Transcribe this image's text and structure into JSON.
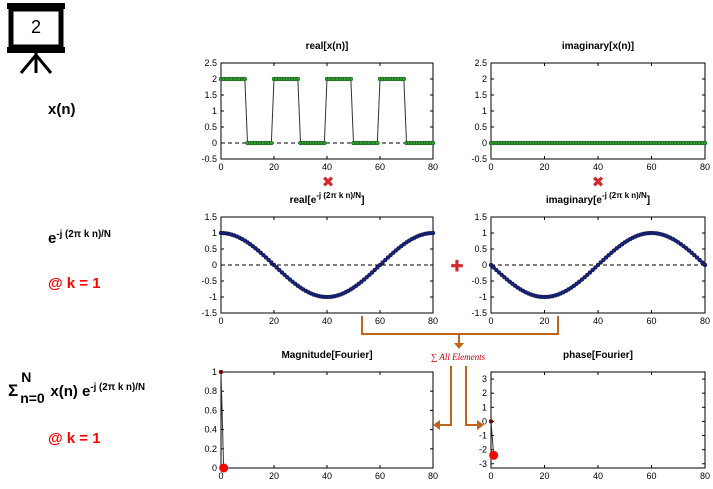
{
  "board_number": "2",
  "labels": {
    "xn": "x(n)",
    "exp_base": "e",
    "exp_sup": "-j (2π k n)/N",
    "at_k1": "@ k = 1",
    "sum_symbol": "Σ",
    "sum_upper": "N",
    "sum_lower": "n=0",
    "sum_term": "x(n) e",
    "sum_sup": "-j (2π k n)/N",
    "at_k1_b": "@ k = 1",
    "all_elements": "∑ All Elements"
  },
  "operators": {
    "multiply": "✖",
    "plus": "✚"
  },
  "colors": {
    "accent_red": "#ff0000",
    "arrow_orange": "#c0661a",
    "cross_red": "#d6282f",
    "green_marker": "#2e9e2e",
    "navy_marker": "#1a237e"
  },
  "chart_data": [
    {
      "id": "real_x",
      "type": "line",
      "title": "real[x(n)]",
      "title_parts": [],
      "x_ticks": [
        0,
        20,
        40,
        60,
        80
      ],
      "y_ticks": [
        2.5,
        2,
        1.5,
        1,
        0.5,
        0,
        -0.5
      ],
      "x_tick_labels": [
        "0",
        "20",
        "40",
        "60",
        "80"
      ],
      "y_tick_labels": [
        "2.5",
        "2",
        "1.5",
        "1",
        "0.5",
        "0",
        "-0.5"
      ],
      "xlim": [
        0,
        80
      ],
      "ylim": [
        -0.5,
        2.5
      ],
      "dashed_zero": true,
      "series": [
        {
          "x": [
            0,
            1,
            2,
            3,
            4,
            5,
            6,
            7,
            8,
            9,
            10,
            11,
            12,
            13,
            14,
            15,
            16,
            17,
            18,
            19,
            20,
            21,
            22,
            23,
            24,
            25,
            26,
            27,
            28,
            29,
            30,
            31,
            32,
            33,
            34,
            35,
            36,
            37,
            38,
            39,
            40,
            41,
            42,
            43,
            44,
            45,
            46,
            47,
            48,
            49,
            50,
            51,
            52,
            53,
            54,
            55,
            56,
            57,
            58,
            59,
            60,
            61,
            62,
            63,
            64,
            65,
            66,
            67,
            68,
            69,
            70,
            71,
            72,
            73,
            74,
            75,
            76,
            77,
            78,
            79,
            80
          ],
          "values": [
            2,
            2,
            2,
            2,
            2,
            2,
            2,
            2,
            2,
            2,
            0,
            0,
            0,
            0,
            0,
            0,
            0,
            0,
            0,
            0,
            2,
            2,
            2,
            2,
            2,
            2,
            2,
            2,
            2,
            2,
            0,
            0,
            0,
            0,
            0,
            0,
            0,
            0,
            0,
            0,
            2,
            2,
            2,
            2,
            2,
            2,
            2,
            2,
            2,
            2,
            0,
            0,
            0,
            0,
            0,
            0,
            0,
            0,
            0,
            0,
            2,
            2,
            2,
            2,
            2,
            2,
            2,
            2,
            2,
            2,
            0,
            0,
            0,
            0,
            0,
            0,
            0,
            0,
            0,
            0,
            0
          ],
          "marker_color": "#2e9e2e"
        }
      ]
    },
    {
      "id": "imag_x",
      "type": "line",
      "title": "imaginary[x(n)]",
      "title_parts": [],
      "x_ticks": [
        0,
        20,
        40,
        60,
        80
      ],
      "y_ticks": [
        2.5,
        2,
        1.5,
        1,
        0.5,
        0,
        -0.5
      ],
      "x_tick_labels": [
        "0",
        "20",
        "40",
        "60",
        "80"
      ],
      "y_tick_labels": [
        "2.5",
        "2",
        "1.5",
        "1",
        "0.5",
        "0",
        "-0.5"
      ],
      "xlim": [
        0,
        80
      ],
      "ylim": [
        -0.5,
        2.5
      ],
      "dashed_zero": true,
      "series": [
        {
          "x": [
            0,
            1,
            2,
            3,
            4,
            5,
            6,
            7,
            8,
            9,
            10,
            11,
            12,
            13,
            14,
            15,
            16,
            17,
            18,
            19,
            20,
            21,
            22,
            23,
            24,
            25,
            26,
            27,
            28,
            29,
            30,
            31,
            32,
            33,
            34,
            35,
            36,
            37,
            38,
            39,
            40,
            41,
            42,
            43,
            44,
            45,
            46,
            47,
            48,
            49,
            50,
            51,
            52,
            53,
            54,
            55,
            56,
            57,
            58,
            59,
            60,
            61,
            62,
            63,
            64,
            65,
            66,
            67,
            68,
            69,
            70,
            71,
            72,
            73,
            74,
            75,
            76,
            77,
            78,
            79,
            80
          ],
          "values": [
            0,
            0,
            0,
            0,
            0,
            0,
            0,
            0,
            0,
            0,
            0,
            0,
            0,
            0,
            0,
            0,
            0,
            0,
            0,
            0,
            0,
            0,
            0,
            0,
            0,
            0,
            0,
            0,
            0,
            0,
            0,
            0,
            0,
            0,
            0,
            0,
            0,
            0,
            0,
            0,
            0,
            0,
            0,
            0,
            0,
            0,
            0,
            0,
            0,
            0,
            0,
            0,
            0,
            0,
            0,
            0,
            0,
            0,
            0,
            0,
            0,
            0,
            0,
            0,
            0,
            0,
            0,
            0,
            0,
            0,
            0,
            0,
            0,
            0,
            0,
            0,
            0,
            0,
            0,
            0,
            0
          ],
          "marker_color": "#2e9e2e"
        }
      ]
    },
    {
      "id": "real_e",
      "type": "line",
      "title": "",
      "title_parts": [
        "real[e",
        "-j (2π k n)/N",
        "]"
      ],
      "x_ticks": [
        0,
        20,
        40,
        60,
        80
      ],
      "y_ticks": [
        1.5,
        1,
        0.5,
        0,
        -0.5,
        -1,
        -1.5
      ],
      "x_tick_labels": [
        "0",
        "20",
        "40",
        "60",
        "80"
      ],
      "y_tick_labels": [
        "1.5",
        "1",
        "0.5",
        "0",
        "-0.5",
        "-1",
        "-1.5"
      ],
      "xlim": [
        0,
        80
      ],
      "ylim": [
        -1.5,
        1.5
      ],
      "dashed_zero": true,
      "series": [
        {
          "function": "cos",
          "period": 80,
          "sign": 1,
          "n_points": 81,
          "marker_color": "#1a237e"
        }
      ]
    },
    {
      "id": "imag_e",
      "type": "line",
      "title": "",
      "title_parts": [
        "imaginary[e",
        "-j (2π k n)/N",
        "]"
      ],
      "x_ticks": [
        0,
        20,
        40,
        60,
        80
      ],
      "y_ticks": [
        1.5,
        1,
        0.5,
        0,
        -0.5,
        -1,
        -1.5
      ],
      "x_tick_labels": [
        "0",
        "20",
        "40",
        "60",
        "80"
      ],
      "y_tick_labels": [
        "1.5",
        "1",
        "0.5",
        "0",
        "-0.5",
        "-1",
        "-1.5"
      ],
      "xlim": [
        0,
        80
      ],
      "ylim": [
        -1.5,
        1.5
      ],
      "dashed_zero": true,
      "series": [
        {
          "function": "sin",
          "period": 80,
          "sign": -1,
          "n_points": 81,
          "marker_color": "#1a237e"
        }
      ]
    },
    {
      "id": "magnitude",
      "type": "line",
      "title": "Magnitude[Fourier]",
      "title_parts": [],
      "x_ticks": [
        0,
        20,
        40,
        60,
        80
      ],
      "y_ticks": [
        1,
        0.8,
        0.6,
        0.4,
        0.2,
        0
      ],
      "x_tick_labels": [
        "0",
        "20",
        "40",
        "60",
        "80"
      ],
      "y_tick_labels": [
        "1",
        "0.8",
        "0.6",
        "0.4",
        "0.2",
        "0"
      ],
      "xlim": [
        0,
        80
      ],
      "ylim": [
        0,
        1
      ],
      "dashed_zero": true,
      "series": [
        {
          "x": [
            0,
            1
          ],
          "values": [
            1,
            0
          ],
          "marker_color": "#8b0000",
          "highlight": {
            "x": 1,
            "y": 0,
            "color": "#ff0000"
          }
        }
      ]
    },
    {
      "id": "phase",
      "type": "line",
      "title": "phase[Fourier]",
      "title_parts": [],
      "x_ticks": [
        0,
        20,
        40,
        60,
        80
      ],
      "y_ticks": [
        3,
        2,
        1,
        0,
        -1,
        -2,
        -3
      ],
      "x_tick_labels": [
        "0",
        "20",
        "40",
        "60",
        "80"
      ],
      "y_tick_labels": [
        "3",
        "2",
        "1",
        "0",
        "-1",
        "-2",
        "-3"
      ],
      "xlim": [
        0,
        80
      ],
      "ylim": [
        -3.3,
        3.5
      ],
      "dashed_zero": false,
      "series": [
        {
          "x": [
            0,
            1
          ],
          "values": [
            0,
            -2.4
          ],
          "marker_color": "#8b0000",
          "highlight": {
            "x": 1,
            "y": -2.4,
            "color": "#ff0000"
          }
        }
      ]
    }
  ]
}
